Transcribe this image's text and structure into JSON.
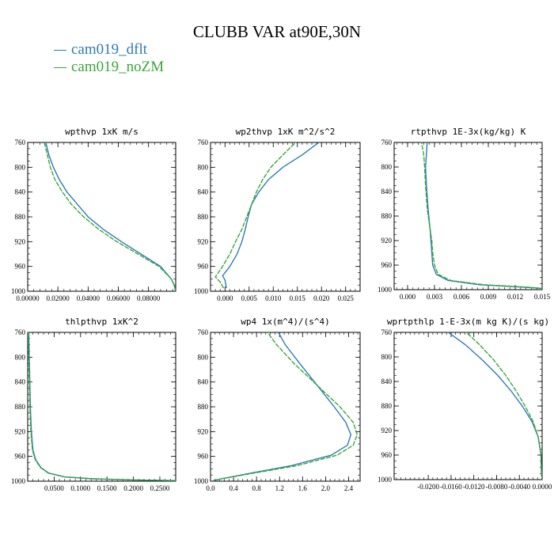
{
  "title": "CLUBB VAR at90E,30N",
  "legend": [
    {
      "label": "cam019_dflt",
      "color": "#2d7bb6"
    },
    {
      "label": "cam019_noZM",
      "color": "#3aa63a"
    }
  ],
  "chart_data": [
    {
      "type": "line",
      "title": "wpthvp   1xK m/s",
      "xlim": [
        0.0,
        0.098
      ],
      "ylim": [
        760,
        1000
      ],
      "y_inverted": true,
      "xticks": [
        0.0,
        0.02,
        0.04,
        0.06,
        0.08
      ],
      "xtick_labels": [
        "0.00000",
        "0.02000",
        "0.04000",
        "0.06000",
        "0.08000"
      ],
      "yticks": [
        760,
        800,
        840,
        880,
        920,
        960,
        1000
      ],
      "ytick_labels": [
        "760",
        "800",
        "840",
        "880",
        "920",
        "960",
        "1000"
      ],
      "series": [
        {
          "name": "cam019_dflt",
          "color": "#2d7bb6",
          "x": [
            0.012,
            0.014,
            0.017,
            0.021,
            0.026,
            0.033,
            0.04,
            0.05,
            0.062,
            0.075,
            0.088,
            0.095,
            0.097,
            0.098
          ],
          "y": [
            760,
            780,
            800,
            820,
            840,
            860,
            880,
            900,
            920,
            940,
            960,
            980,
            990,
            1000
          ]
        },
        {
          "name": "cam019_noZM",
          "color": "#3aa63a",
          "x": [
            0.011,
            0.013,
            0.015,
            0.018,
            0.023,
            0.029,
            0.037,
            0.047,
            0.059,
            0.073,
            0.087,
            0.095,
            0.097,
            0.098
          ],
          "y": [
            760,
            780,
            800,
            820,
            840,
            860,
            880,
            900,
            920,
            940,
            960,
            980,
            990,
            1000
          ]
        }
      ]
    },
    {
      "type": "line",
      "title": "wp2thvp   1xK m^2/s^2",
      "xlim": [
        -0.003,
        0.028
      ],
      "ylim": [
        760,
        1000
      ],
      "y_inverted": true,
      "xticks": [
        0.0,
        0.005,
        0.01,
        0.015,
        0.02,
        0.025
      ],
      "xtick_labels": [
        "0.000",
        "0.005",
        "0.010",
        "0.015",
        "0.020",
        "0.025"
      ],
      "yticks": [
        760,
        800,
        840,
        880,
        920,
        960,
        1000
      ],
      "ytick_labels": [
        "760",
        "800",
        "840",
        "880",
        "920",
        "960",
        "1000"
      ],
      "series": [
        {
          "name": "cam019_dflt",
          "color": "#2d7bb6",
          "x": [
            0.0203,
            0.016,
            0.012,
            0.009,
            0.007,
            0.0055,
            0.0048,
            0.0042,
            0.0035,
            0.0025,
            0.001,
            -0.0005,
            0.0,
            0.0003
          ],
          "y": [
            755,
            780,
            800,
            820,
            840,
            860,
            880,
            900,
            920,
            940,
            960,
            975,
            982,
            995
          ]
        },
        {
          "name": "cam019_noZM",
          "color": "#3aa63a",
          "x": [
            0.0153,
            0.012,
            0.0095,
            0.0078,
            0.0065,
            0.0055,
            0.0045,
            0.0035,
            0.0022,
            0.001,
            -0.0005,
            -0.002,
            -0.001,
            -0.0003
          ],
          "y": [
            755,
            780,
            800,
            820,
            840,
            860,
            880,
            900,
            920,
            940,
            960,
            977,
            985,
            995
          ]
        }
      ]
    },
    {
      "type": "line",
      "title": "rtpthvp   1E-3x(kg/kg) K",
      "xlim": [
        -0.0015,
        0.015
      ],
      "ylim": [
        760,
        1000
      ],
      "y_inverted": true,
      "xticks": [
        0.0,
        0.003,
        0.006,
        0.009,
        0.012,
        0.015
      ],
      "xtick_labels": [
        "0.000",
        "0.003",
        "0.006",
        "0.009",
        "0.012",
        "0.015"
      ],
      "yticks": [
        760,
        800,
        840,
        880,
        920,
        960,
        1000
      ],
      "ytick_labels": [
        "760",
        "800",
        "840",
        "880",
        "920",
        "960",
        "1000"
      ],
      "series": [
        {
          "name": "cam019_dflt",
          "color": "#2d7bb6",
          "x": [
            0.0022,
            0.0021,
            0.002,
            0.0021,
            0.0023,
            0.0025,
            0.0026,
            0.0027,
            0.0028,
            0.0032,
            0.0045,
            0.008,
            0.013,
            0.015
          ],
          "y": [
            755,
            780,
            800,
            830,
            870,
            900,
            920,
            940,
            960,
            975,
            985,
            992,
            996,
            998
          ]
        },
        {
          "name": "cam019_noZM",
          "color": "#3aa63a",
          "x": [
            0.0015,
            0.0018,
            0.0019,
            0.002,
            0.0022,
            0.0025,
            0.0027,
            0.0028,
            0.003,
            0.0034,
            0.0048,
            0.0085,
            0.0135,
            0.015
          ],
          "y": [
            755,
            780,
            800,
            830,
            870,
            900,
            920,
            940,
            960,
            975,
            985,
            992,
            996,
            998
          ]
        }
      ]
    },
    {
      "type": "line",
      "title": "thlpthvp   1xK^2",
      "xlim": [
        0.0,
        0.28
      ],
      "ylim": [
        760,
        1000
      ],
      "y_inverted": true,
      "xticks": [
        0.05,
        0.1,
        0.15,
        0.2,
        0.25
      ],
      "xtick_labels": [
        "0.0500",
        "0.1000",
        "0.1500",
        "0.2000",
        "0.2500"
      ],
      "yticks": [
        760,
        800,
        840,
        880,
        920,
        960,
        1000
      ],
      "ytick_labels": [
        "760",
        "800",
        "840",
        "880",
        "920",
        "960",
        "1000"
      ],
      "series": [
        {
          "name": "cam019_dflt",
          "color": "#2d7bb6",
          "x": [
            0.002,
            0.003,
            0.004,
            0.005,
            0.007,
            0.01,
            0.015,
            0.025,
            0.04,
            0.07,
            0.12,
            0.2,
            0.28
          ],
          "y": [
            760,
            800,
            840,
            880,
            920,
            950,
            965,
            978,
            987,
            993,
            996,
            998,
            999
          ]
        },
        {
          "name": "cam019_noZM",
          "color": "#3aa63a",
          "x": [
            0.001,
            0.002,
            0.003,
            0.004,
            0.006,
            0.009,
            0.014,
            0.024,
            0.039,
            0.069,
            0.119,
            0.199,
            0.28
          ],
          "y": [
            760,
            800,
            840,
            880,
            920,
            950,
            965,
            978,
            987,
            993,
            996,
            998,
            999
          ]
        }
      ]
    },
    {
      "type": "line",
      "title": "wp4   1x(m^4)/(s^4)",
      "xlim": [
        0.0,
        2.6
      ],
      "ylim": [
        760,
        1000
      ],
      "y_inverted": true,
      "xticks": [
        0.0,
        0.4,
        0.8,
        1.2,
        1.6,
        2.0,
        2.4
      ],
      "xtick_labels": [
        "0.0",
        "0.4",
        "0.8",
        "1.2",
        "1.6",
        "2.0",
        "2.4"
      ],
      "yticks": [
        760,
        800,
        840,
        880,
        920,
        960,
        1000
      ],
      "ytick_labels": [
        "760",
        "800",
        "840",
        "880",
        "920",
        "960",
        "1000"
      ],
      "series": [
        {
          "name": "cam019_dflt",
          "color": "#2d7bb6",
          "x": [
            1.15,
            1.3,
            1.55,
            1.85,
            2.15,
            2.35,
            2.44,
            2.38,
            2.1,
            1.4,
            0.7,
            0.2,
            0.05
          ],
          "y": [
            755,
            780,
            810,
            845,
            880,
            905,
            925,
            942,
            958,
            975,
            987,
            996,
            999
          ]
        },
        {
          "name": "cam019_noZM",
          "color": "#3aa63a",
          "x": [
            0.95,
            1.15,
            1.45,
            1.85,
            2.25,
            2.48,
            2.55,
            2.48,
            2.2,
            1.5,
            0.75,
            0.2,
            0.05
          ],
          "y": [
            755,
            780,
            810,
            845,
            880,
            905,
            925,
            942,
            958,
            975,
            987,
            996,
            999
          ]
        }
      ]
    },
    {
      "type": "line",
      "title": "wprtpthlp   1-E-3x(m kg K)/(s kg)",
      "xlim": [
        -0.026,
        0.0
      ],
      "ylim": [
        760,
        1000
      ],
      "y_inverted": true,
      "xticks": [
        -0.02,
        -0.016,
        -0.012,
        -0.008,
        -0.004,
        0.0
      ],
      "xtick_labels": [
        "-0.0200",
        "-0.0160",
        "-0.0120",
        "-0.0080",
        "-0.0040",
        "0.0000"
      ],
      "yticks": [
        760,
        800,
        840,
        880,
        920,
        960,
        1000
      ],
      "ytick_labels": [
        "760",
        "800",
        "840",
        "880",
        "920",
        "960",
        "1000"
      ],
      "series": [
        {
          "name": "cam019_dflt",
          "color": "#2d7bb6",
          "x": [
            -0.0172,
            -0.0135,
            -0.0105,
            -0.0078,
            -0.0055,
            -0.0035,
            -0.0018,
            -0.0007,
            -0.0002,
            -0.0001
          ],
          "y": [
            755,
            780,
            805,
            830,
            855,
            880,
            905,
            930,
            960,
            995
          ]
        },
        {
          "name": "cam019_noZM",
          "color": "#3aa63a",
          "x": [
            -0.0139,
            -0.011,
            -0.0085,
            -0.0064,
            -0.0046,
            -0.003,
            -0.0016,
            -0.0007,
            -0.0002,
            -0.0001
          ],
          "y": [
            755,
            780,
            805,
            830,
            855,
            880,
            905,
            930,
            960,
            995
          ]
        }
      ]
    }
  ]
}
